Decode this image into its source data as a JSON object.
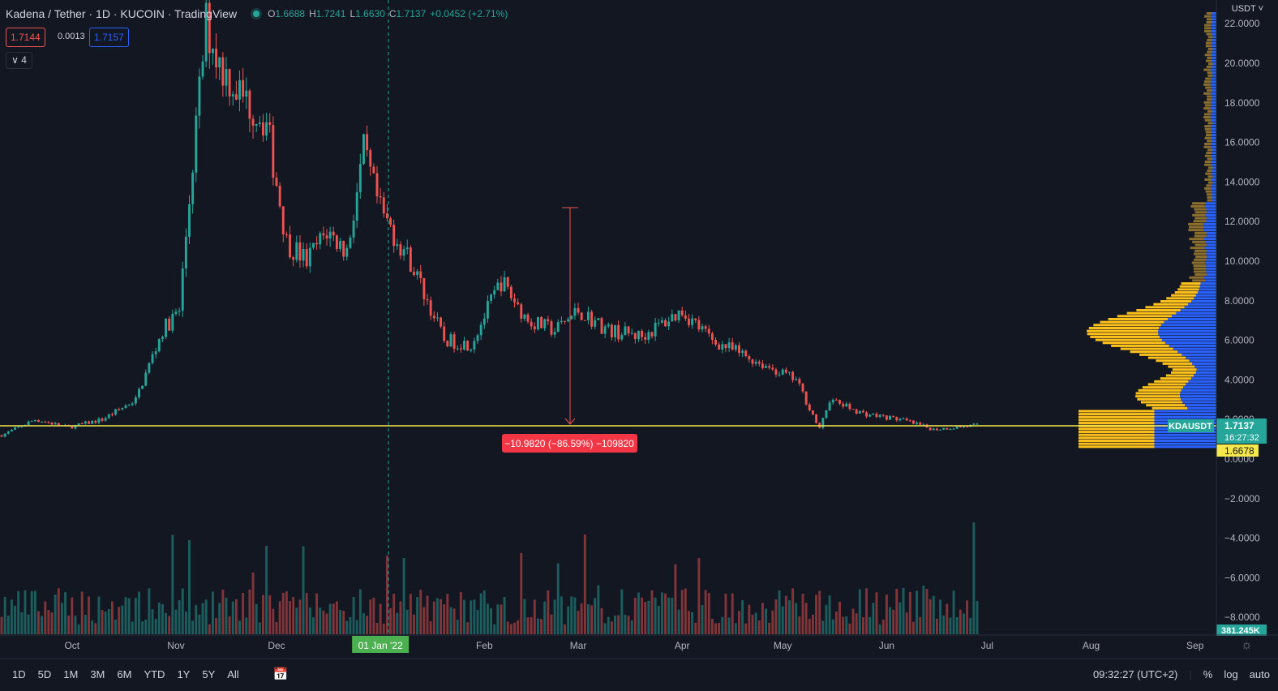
{
  "header": {
    "symbol": "Kadena / Tether · 1D · KUCOIN · TradingView",
    "open_label": "O",
    "open": "1.6688",
    "high_label": "H",
    "high": "1.7241",
    "low_label": "L",
    "low": "1.6630",
    "close_label": "C",
    "close": "1.7137",
    "change": "+0.0452 (+2.71%)"
  },
  "trade": {
    "sell": "1.7144",
    "spread": "0.0013",
    "buy": "1.7157"
  },
  "indicators_toggle": "4",
  "price_axis": {
    "currency": "USDT",
    "ticks": [
      "22.0000",
      "20.0000",
      "18.0000",
      "16.0000",
      "14.0000",
      "12.0000",
      "10.0000",
      "8.0000",
      "6.0000",
      "4.0000",
      "2.0000",
      "0.0000",
      "−2.0000",
      "−4.0000",
      "−6.0000",
      "−8.0000"
    ],
    "symbol_tag": "KDAUSDT",
    "last_price": "1.7137",
    "countdown": "16:27:32",
    "line_price": "1.6678",
    "volume": "381.245K"
  },
  "time_axis": {
    "labels": [
      "Oct",
      "Nov",
      "Dec",
      "01 Jan '22",
      "Feb",
      "Mar",
      "Apr",
      "May",
      "Jun",
      "Jul",
      "Aug",
      "Sep"
    ]
  },
  "measure": {
    "label": "−10.9820 (−86.59%) −109820"
  },
  "toolbar": {
    "timeframes": [
      "1D",
      "5D",
      "1M",
      "3M",
      "6M",
      "YTD",
      "1Y",
      "5Y",
      "All"
    ],
    "time": "09:32:27 (UTC+2)",
    "percent": "%",
    "log": "log",
    "auto": "auto"
  },
  "colors": {
    "up": "#26a69a",
    "down": "#ef5350",
    "bg": "#131722",
    "line": "#f5e84a",
    "vp_blue": "#2962ff",
    "vp_yellow": "#ffc11a",
    "vp_brown": "#8c6f2d"
  },
  "chart_data": {
    "type": "candlestick",
    "x_start": "2021-09-10",
    "x_end": "2022-06-28",
    "ylim": [
      -8,
      22
    ],
    "close_approx": [
      {
        "date": "2021-09-10",
        "close": 1.2
      },
      {
        "date": "2021-09-20",
        "close": 2.0
      },
      {
        "date": "2021-09-30",
        "close": 1.6
      },
      {
        "date": "2021-10-10",
        "close": 2.0
      },
      {
        "date": "2021-10-20",
        "close": 3.0
      },
      {
        "date": "2021-10-28",
        "close": 6.5
      },
      {
        "date": "2021-11-02",
        "close": 7.5
      },
      {
        "date": "2021-11-06",
        "close": 15.0
      },
      {
        "date": "2021-11-10",
        "close": 22.0
      },
      {
        "date": "2021-11-14",
        "close": 20.0
      },
      {
        "date": "2021-11-20",
        "close": 18.5
      },
      {
        "date": "2021-11-28",
        "close": 17.0
      },
      {
        "date": "2021-12-04",
        "close": 11.0
      },
      {
        "date": "2021-12-10",
        "close": 10.0
      },
      {
        "date": "2021-12-16",
        "close": 11.5
      },
      {
        "date": "2021-12-22",
        "close": 10.5
      },
      {
        "date": "2021-12-27",
        "close": 15.5
      },
      {
        "date": "2022-01-01",
        "close": 12.5
      },
      {
        "date": "2022-01-10",
        "close": 10.0
      },
      {
        "date": "2022-01-20",
        "close": 6.0
      },
      {
        "date": "2022-01-28",
        "close": 5.8
      },
      {
        "date": "2022-02-06",
        "close": 9.0
      },
      {
        "date": "2022-02-14",
        "close": 7.0
      },
      {
        "date": "2022-02-22",
        "close": 6.5
      },
      {
        "date": "2022-03-01",
        "close": 7.5
      },
      {
        "date": "2022-03-10",
        "close": 6.5
      },
      {
        "date": "2022-03-20",
        "close": 6.2
      },
      {
        "date": "2022-04-01",
        "close": 7.5
      },
      {
        "date": "2022-04-10",
        "close": 6.0
      },
      {
        "date": "2022-04-25",
        "close": 4.8
      },
      {
        "date": "2022-05-05",
        "close": 4.0
      },
      {
        "date": "2022-05-12",
        "close": 1.5
      },
      {
        "date": "2022-05-15",
        "close": 3.0
      },
      {
        "date": "2022-05-25",
        "close": 2.3
      },
      {
        "date": "2022-06-05",
        "close": 2.0
      },
      {
        "date": "2022-06-15",
        "close": 1.5
      },
      {
        "date": "2022-06-28",
        "close": 1.71
      }
    ]
  }
}
